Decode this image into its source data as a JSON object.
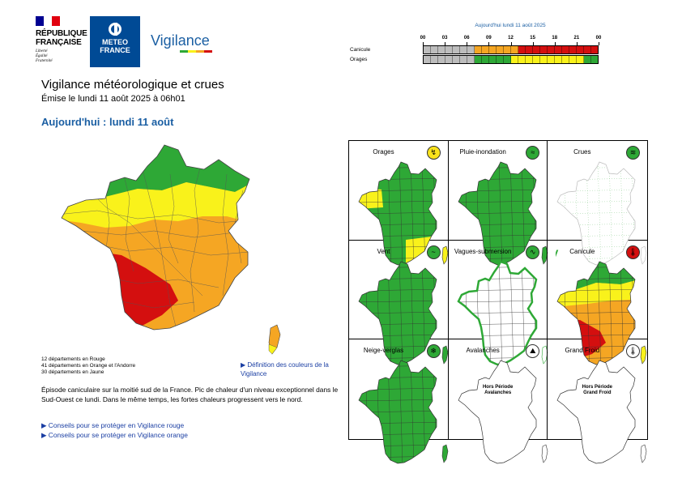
{
  "header": {
    "republique": [
      "RÉPUBLIQUE",
      "FRANÇAISE"
    ],
    "devise": [
      "Liberté",
      "Égalité",
      "Fraternité"
    ],
    "meteo_france": [
      "METEO",
      "FRANCE"
    ],
    "vigilance_logo": "Vigilance"
  },
  "timeline": {
    "title": "Aujourd'hui lundi 11 août 2025",
    "hours": [
      "00",
      "03",
      "06",
      "09",
      "12",
      "15",
      "18",
      "21",
      "00"
    ],
    "rows": [
      {
        "label": "Canicule",
        "levels": [
          "gray",
          "gray",
          "gray",
          "gray",
          "gray",
          "gray",
          "gray",
          "orange",
          "orange",
          "orange",
          "orange",
          "orange",
          "orange",
          "red",
          "red",
          "red",
          "red",
          "red",
          "red",
          "red",
          "red",
          "red",
          "red",
          "red"
        ]
      },
      {
        "label": "Orages",
        "levels": [
          "gray",
          "gray",
          "gray",
          "gray",
          "gray",
          "gray",
          "gray",
          "green",
          "green",
          "green",
          "green",
          "green",
          "yellow",
          "yellow",
          "yellow",
          "yellow",
          "yellow",
          "yellow",
          "yellow",
          "yellow",
          "yellow",
          "yellow",
          "green",
          "green"
        ]
      }
    ]
  },
  "page": {
    "title": "Vigilance météorologique et crues",
    "emission": "Émise le lundi 11 août 2025 à 06h01",
    "today": "Aujourd'hui : lundi 11 août"
  },
  "stats": [
    "12 départements en Rouge",
    "41 départements en Orange et l'Andorre",
    "30 départements en Jaune"
  ],
  "definition_link": "▶ Définition des couleurs de la Vigilance",
  "description": "Épisode caniculaire sur la moitié sud de la France. Pic de chaleur d'un niveau exceptionnel dans le Sud-Ouest ce lundi. Dans le même temps, les fortes chaleurs progressent vers le nord.",
  "links": [
    "▶ Conseils pour se protéger en Vigilance rouge",
    "▶ Conseils pour se protéger en Vigilance orange"
  ],
  "phenomena": [
    {
      "label": "Orages",
      "icon": "lightning-icon",
      "icon_glyph": "↯",
      "icon_color": "#f9e21b",
      "map": "orages"
    },
    {
      "label": "Pluie-inondation",
      "icon": "rain-flood-icon",
      "icon_glyph": "≈",
      "icon_color": "#2ea836",
      "map": "green"
    },
    {
      "label": "Crues",
      "icon": "flood-icon",
      "icon_glyph": "≋",
      "icon_color": "#2ea836",
      "map": "crues"
    },
    {
      "label": "Vent",
      "icon": "wind-icon",
      "icon_glyph": "~",
      "icon_color": "#2ea836",
      "map": "green"
    },
    {
      "label": "Vagues-submersion",
      "icon": "waves-icon",
      "icon_glyph": "∿",
      "icon_color": "#2ea836",
      "map": "vagues"
    },
    {
      "label": "Canicule",
      "icon": "thermometer-icon",
      "icon_glyph": "🌡",
      "icon_color": "#d40f0f",
      "map": "canicule"
    },
    {
      "label": "Neige-verglas",
      "icon": "snow-icon",
      "icon_glyph": "❄",
      "icon_color": "#2ea836",
      "map": "green"
    },
    {
      "label": "Avalanches",
      "icon": "avalanche-icon",
      "icon_glyph": "⛰",
      "icon_color": "#ffffff",
      "map": "white",
      "hors": [
        "Hors Période",
        "Avalanches"
      ]
    },
    {
      "label": "Grand Froid",
      "icon": "cold-thermometer-icon",
      "icon_glyph": "🌡",
      "icon_color": "#ffffff",
      "map": "white",
      "hors": [
        "Hors Période",
        "Grand Froid"
      ]
    }
  ],
  "colors": {
    "green": "#2ea836",
    "yellow": "#f9f21b",
    "orange": "#f5a623",
    "red": "#d40f0f",
    "gray": "#bdbdbd",
    "blue": "#1b5fa3"
  }
}
